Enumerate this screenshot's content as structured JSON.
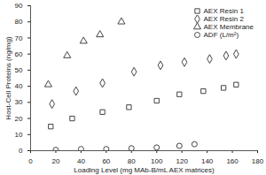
{
  "chart_data": {
    "type": "scatter",
    "xlabel": "Loading Level (mg MAb-B/mL AEX matrices)",
    "ylabel": "Host-Cell Proteins (ng/mg)",
    "xlim": [
      0,
      180
    ],
    "xticks": [
      0,
      20,
      40,
      60,
      80,
      100,
      120,
      140,
      160,
      180
    ],
    "ylim": [
      0,
      90
    ],
    "yticks": [
      0,
      10,
      20,
      30,
      40,
      50,
      60,
      70,
      80,
      90
    ],
    "grid": false,
    "legend": "top-right",
    "series": [
      {
        "name": "AEX Resin 1",
        "marker": "square",
        "color": "#444444",
        "x": [
          16,
          33,
          57,
          78,
          100,
          118,
          137,
          153,
          163
        ],
        "values": [
          15,
          20,
          24,
          27,
          31,
          35,
          37,
          39,
          41
        ]
      },
      {
        "name": "AEX Resin 2",
        "marker": "diamond",
        "color": "#444444",
        "x": [
          17,
          36,
          57,
          82,
          103,
          122,
          142,
          155,
          163
        ],
        "values": [
          29,
          37,
          42,
          49,
          53,
          55,
          57,
          59,
          60
        ]
      },
      {
        "name": "AEX Membrane",
        "marker": "triangle",
        "color": "#444444",
        "x": [
          14,
          29,
          42,
          55,
          72
        ],
        "values": [
          41,
          59,
          68,
          72,
          80
        ]
      },
      {
        "name": "ADF (L/m²)",
        "marker": "circle",
        "color": "#444444",
        "x": [
          20,
          40,
          60,
          80,
          100,
          118,
          130
        ],
        "values": [
          0.5,
          1,
          1,
          1.5,
          2,
          3,
          4
        ]
      }
    ]
  }
}
